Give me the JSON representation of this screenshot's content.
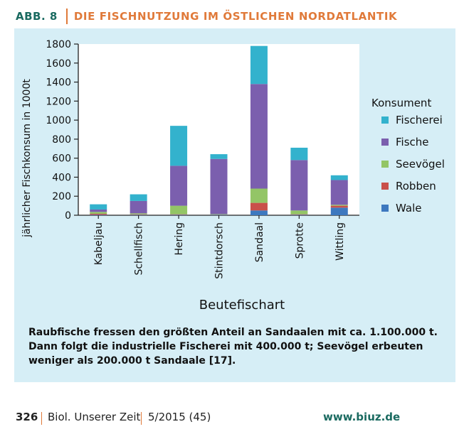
{
  "header": {
    "label": "ABB. 8",
    "title": "DIE FISCHNUTZUNG IM ÖSTLICHEN NORDATLANTIK"
  },
  "caption": "Raubfische fressen den größten Anteil an Sandaalen mit ca. 1.100.000 t. Dann folgt die industrielle Fischerei mit 400.000 t; Seevögel erbeuten weniger als 200.000 t Sandaale [17].",
  "footer": {
    "page": "326",
    "journal": "Biol. Unserer Zeit",
    "issue": "5/2015 (45)",
    "url": "www.biuz.de"
  },
  "chart_data": {
    "type": "bar",
    "stacked": true,
    "xlabel": "Beutefischart",
    "ylabel": "jährlicher Fischkonsum in 1000t",
    "ylim": [
      0,
      1800
    ],
    "yticks": [
      "0",
      "200",
      "400",
      "600",
      "800",
      "1000",
      "1200",
      "1400",
      "1600",
      "1800"
    ],
    "categories": [
      "Kabeljau",
      "Schellfisch",
      "Hering",
      "Stintdorsch",
      "Sandaal",
      "Sprotte",
      "Wittling"
    ],
    "legend_title": "Konsument",
    "legend_position": "right",
    "series": [
      {
        "name": "Wale",
        "color": "#3d78bf",
        "values": [
          5,
          5,
          5,
          5,
          50,
          5,
          80
        ]
      },
      {
        "name": "Robben",
        "color": "#c9504a",
        "values": [
          10,
          5,
          5,
          2,
          80,
          5,
          20
        ]
      },
      {
        "name": "Seevögel",
        "color": "#93c566",
        "values": [
          20,
          10,
          90,
          5,
          150,
          40,
          10
        ]
      },
      {
        "name": "Fische",
        "color": "#7b5fae",
        "values": [
          25,
          130,
          420,
          580,
          1100,
          530,
          260
        ]
      },
      {
        "name": "Fischerei",
        "color": "#33b2cd",
        "values": [
          55,
          70,
          420,
          50,
          400,
          130,
          50
        ]
      }
    ]
  }
}
